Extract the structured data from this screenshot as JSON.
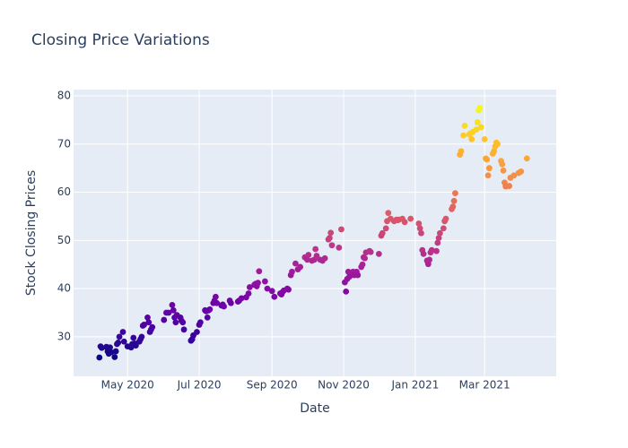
{
  "chart_data": {
    "type": "scatter",
    "title": "Closing Price Variations",
    "xlabel": "Date",
    "ylabel": "Stock Closing Prices",
    "colorscale": "plasma",
    "grid": true,
    "xlim": [
      "2020-03-16",
      "2021-05-01"
    ],
    "xticks": [
      {
        "value": "2020-05-01",
        "label": "May 2020"
      },
      {
        "value": "2020-07-01",
        "label": "Jul 2020"
      },
      {
        "value": "2020-09-01",
        "label": "Sep 2020"
      },
      {
        "value": "2020-11-01",
        "label": "Nov 2020"
      },
      {
        "value": "2021-01-01",
        "label": "Jan 2021"
      },
      {
        "value": "2021-03-01",
        "label": "Mar 2021"
      }
    ],
    "ylim": [
      21.8,
      81.3
    ],
    "yticks": [
      30,
      40,
      50,
      60,
      70,
      80
    ],
    "x": [
      "2020-04-07",
      "2020-04-08",
      "2020-04-09",
      "2020-04-13",
      "2020-04-14",
      "2020-04-15",
      "2020-04-16",
      "2020-04-17",
      "2020-04-20",
      "2020-04-21",
      "2020-04-22",
      "2020-04-23",
      "2020-04-24",
      "2020-04-27",
      "2020-04-28",
      "2020-05-01",
      "2020-05-04",
      "2020-05-05",
      "2020-05-06",
      "2020-05-07",
      "2020-05-08",
      "2020-05-11",
      "2020-05-12",
      "2020-05-13",
      "2020-05-14",
      "2020-05-15",
      "2020-05-18",
      "2020-05-19",
      "2020-05-20",
      "2020-05-21",
      "2020-05-22",
      "2020-06-01",
      "2020-06-03",
      "2020-06-05",
      "2020-06-08",
      "2020-06-09",
      "2020-06-10",
      "2020-06-11",
      "2020-06-12",
      "2020-06-15",
      "2020-06-16",
      "2020-06-17",
      "2020-06-18",
      "2020-06-24",
      "2020-06-25",
      "2020-06-26",
      "2020-06-29",
      "2020-07-01",
      "2020-07-02",
      "2020-07-06",
      "2020-07-07",
      "2020-07-08",
      "2020-07-09",
      "2020-07-10",
      "2020-07-13",
      "2020-07-14",
      "2020-07-15",
      "2020-07-16",
      "2020-07-20",
      "2020-07-21",
      "2020-07-22",
      "2020-07-27",
      "2020-07-28",
      "2020-08-03",
      "2020-08-04",
      "2020-08-06",
      "2020-08-10",
      "2020-08-12",
      "2020-08-13",
      "2020-08-17",
      "2020-08-18",
      "2020-08-19",
      "2020-08-20",
      "2020-08-21",
      "2020-08-26",
      "2020-08-28",
      "2020-09-01",
      "2020-09-03",
      "2020-09-08",
      "2020-09-09",
      "2020-09-10",
      "2020-09-11",
      "2020-09-14",
      "2020-09-15",
      "2020-09-17",
      "2020-09-18",
      "2020-09-21",
      "2020-09-23",
      "2020-09-25",
      "2020-09-29",
      "2020-10-01",
      "2020-10-02",
      "2020-10-05",
      "2020-10-07",
      "2020-10-08",
      "2020-10-09",
      "2020-10-12",
      "2020-10-14",
      "2020-10-16",
      "2020-10-19",
      "2020-10-20",
      "2020-10-21",
      "2020-10-22",
      "2020-10-28",
      "2020-10-30",
      "2020-11-02",
      "2020-11-03",
      "2020-11-04",
      "2020-11-05",
      "2020-11-06",
      "2020-11-09",
      "2020-11-10",
      "2020-11-11",
      "2020-11-12",
      "2020-11-13",
      "2020-11-16",
      "2020-11-17",
      "2020-11-18",
      "2020-11-19",
      "2020-11-20",
      "2020-11-23",
      "2020-11-24",
      "2020-12-01",
      "2020-12-03",
      "2020-12-04",
      "2020-12-07",
      "2020-12-08",
      "2020-12-09",
      "2020-12-11",
      "2020-12-14",
      "2020-12-16",
      "2020-12-17",
      "2020-12-18",
      "2020-12-21",
      "2020-12-23",
      "2020-12-28",
      "2021-01-04",
      "2021-01-05",
      "2021-01-06",
      "2021-01-07",
      "2021-01-08",
      "2021-01-11",
      "2021-01-12",
      "2021-01-13",
      "2021-01-14",
      "2021-01-15",
      "2021-01-19",
      "2021-01-20",
      "2021-01-21",
      "2021-01-22",
      "2021-01-25",
      "2021-01-26",
      "2021-01-27",
      "2021-02-01",
      "2021-02-02",
      "2021-02-03",
      "2021-02-04",
      "2021-02-08",
      "2021-02-09",
      "2021-02-11",
      "2021-02-12",
      "2021-02-16",
      "2021-02-17",
      "2021-02-18",
      "2021-02-19",
      "2021-02-22",
      "2021-02-23",
      "2021-02-24",
      "2021-02-25",
      "2021-02-26",
      "2021-03-01",
      "2021-03-02",
      "2021-03-03",
      "2021-03-04",
      "2021-03-05",
      "2021-03-08",
      "2021-03-09",
      "2021-03-10",
      "2021-03-11",
      "2021-03-12",
      "2021-03-15",
      "2021-03-16",
      "2021-03-17",
      "2021-03-18",
      "2021-03-19",
      "2021-03-22",
      "2021-03-23",
      "2021-03-26",
      "2021-03-30",
      "2021-04-01",
      "2021-04-06"
    ],
    "values": [
      25.7,
      28,
      27.7,
      27.9,
      27,
      26.5,
      27.8,
      26.8,
      25.8,
      27,
      28.5,
      28.8,
      30,
      31,
      29,
      28,
      27.8,
      28.5,
      29.8,
      28.6,
      28.2,
      29,
      29.5,
      30,
      32.3,
      32.5,
      34,
      33,
      31,
      31.5,
      32,
      33.5,
      35,
      35,
      36.6,
      35.5,
      34,
      33,
      34.5,
      34,
      33.3,
      33,
      31.5,
      29.2,
      29.5,
      30.3,
      31,
      32.5,
      33,
      35.5,
      35.3,
      34,
      35.5,
      35.7,
      37,
      37.5,
      38.3,
      37,
      36.5,
      36.7,
      36.3,
      37.5,
      37,
      37.3,
      37.5,
      38,
      38.2,
      39,
      40.3,
      40.8,
      41,
      40.5,
      41.2,
      43.6,
      41.5,
      40,
      39.5,
      38.3,
      39,
      38.8,
      39.3,
      39.6,
      40,
      39.8,
      42.8,
      43.5,
      45.2,
      44,
      44.5,
      46.5,
      46,
      47,
      45.8,
      46,
      48.2,
      46.8,
      46,
      45.8,
      46.3,
      50.2,
      50.5,
      51.6,
      49,
      48.5,
      52.3,
      41.3,
      39.4,
      42,
      43.5,
      42.5,
      43.5,
      42.8,
      43,
      43.5,
      42.8,
      44.5,
      45,
      46.5,
      46.3,
      47.5,
      47.8,
      47.6,
      47.2,
      51,
      51.5,
      52.5,
      54,
      55.7,
      54.5,
      54,
      54.3,
      54.2,
      54.3,
      54.5,
      53.8,
      54.5,
      53.5,
      52.5,
      51.5,
      48,
      47.2,
      45.8,
      45.1,
      46,
      47.5,
      48,
      47.8,
      49.5,
      50.5,
      51.5,
      52.5,
      54,
      54.5,
      56.5,
      57,
      58.2,
      59.8,
      67.8,
      68.5,
      71.8,
      73.8,
      72,
      72.2,
      71,
      72.5,
      73,
      74.5,
      77,
      77.5,
      73.5,
      71,
      67,
      66.8,
      63.5,
      65,
      68,
      68.5,
      69.5,
      70.3,
      70,
      66.5,
      65.8,
      64.5,
      62,
      61.2,
      61.3,
      63,
      63.5,
      64,
      64.3,
      67
    ]
  }
}
